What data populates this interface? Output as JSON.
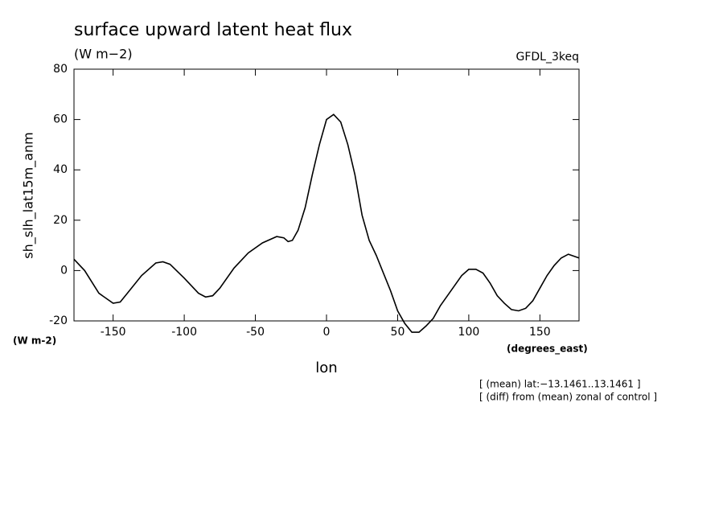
{
  "chart_data": {
    "type": "line",
    "title": "surface upward latent heat flux",
    "subtitle": "(W m−2)",
    "dataset": "GFDL_3keq",
    "y_label": "sh_slh_lat15m_anm",
    "y_units": "(W m-2)",
    "x_label": "lon",
    "x_units": "(degrees_east)",
    "annotations": [
      "[ (mean) lat:−13.1461..13.1461 ]",
      "[ (diff) from (mean) zonal of control ]"
    ],
    "x": [
      -177.5,
      -170,
      -160,
      -150,
      -145,
      -140,
      -130,
      -120,
      -115,
      -110,
      -100,
      -90,
      -85,
      -80,
      -75,
      -65,
      -55,
      -45,
      -35,
      -30,
      -27,
      -24,
      -20,
      -15,
      -10,
      -5,
      0,
      5,
      10,
      15,
      20,
      25,
      30,
      35,
      40,
      45,
      50,
      55,
      60,
      65,
      70,
      75,
      80,
      85,
      90,
      95,
      100,
      105,
      110,
      115,
      120,
      125,
      130,
      135,
      140,
      145,
      150,
      155,
      160,
      165,
      170,
      177.5
    ],
    "series": [
      {
        "name": "sh_slh_lat15m_anm",
        "color": "#000000",
        "values": [
          4.5,
          0,
          -9,
          -13,
          -12.5,
          -9,
          -2,
          3,
          3.5,
          2.5,
          -3,
          -9,
          -10.5,
          -10,
          -7,
          1,
          7,
          11,
          13.5,
          13,
          11.5,
          12,
          16,
          25,
          38,
          50,
          60,
          62,
          59,
          50,
          38,
          22,
          12,
          6,
          -1,
          -8,
          -16,
          -21,
          -24.5,
          -24.5,
          -22,
          -19,
          -14,
          -10,
          -6,
          -2,
          0.5,
          0.5,
          -1,
          -5,
          -10,
          -13,
          -15.5,
          -16,
          -15,
          -12,
          -7,
          -2,
          2,
          5,
          6.5,
          5
        ]
      }
    ],
    "xlim": [
      -177.5,
      177.5
    ],
    "ylim": [
      -20,
      80
    ],
    "xticks": [
      -150,
      -100,
      -50,
      0,
      50,
      100,
      150
    ],
    "yticks": [
      -20,
      0,
      20,
      40,
      60,
      80
    ]
  }
}
